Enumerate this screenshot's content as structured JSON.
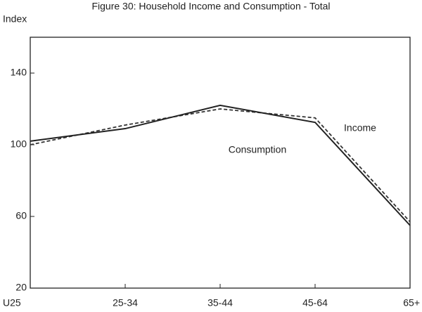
{
  "chart_data": {
    "type": "line",
    "title": "Figure 30: Household Income and Consumption - Total",
    "y_label": "Index",
    "categories": [
      "U25",
      "25-34",
      "35-44",
      "45-64",
      "65+"
    ],
    "series": [
      {
        "name": "Income",
        "color": "#333333",
        "dash": true,
        "values": [
          100,
          111,
          120,
          115,
          57
        ]
      },
      {
        "name": "Consumption",
        "color": "#222222",
        "dash": false,
        "values": [
          102,
          109,
          122,
          112.5,
          55
        ]
      }
    ],
    "ylim": [
      20,
      160
    ],
    "yticks": [
      20,
      60,
      100,
      140
    ]
  }
}
